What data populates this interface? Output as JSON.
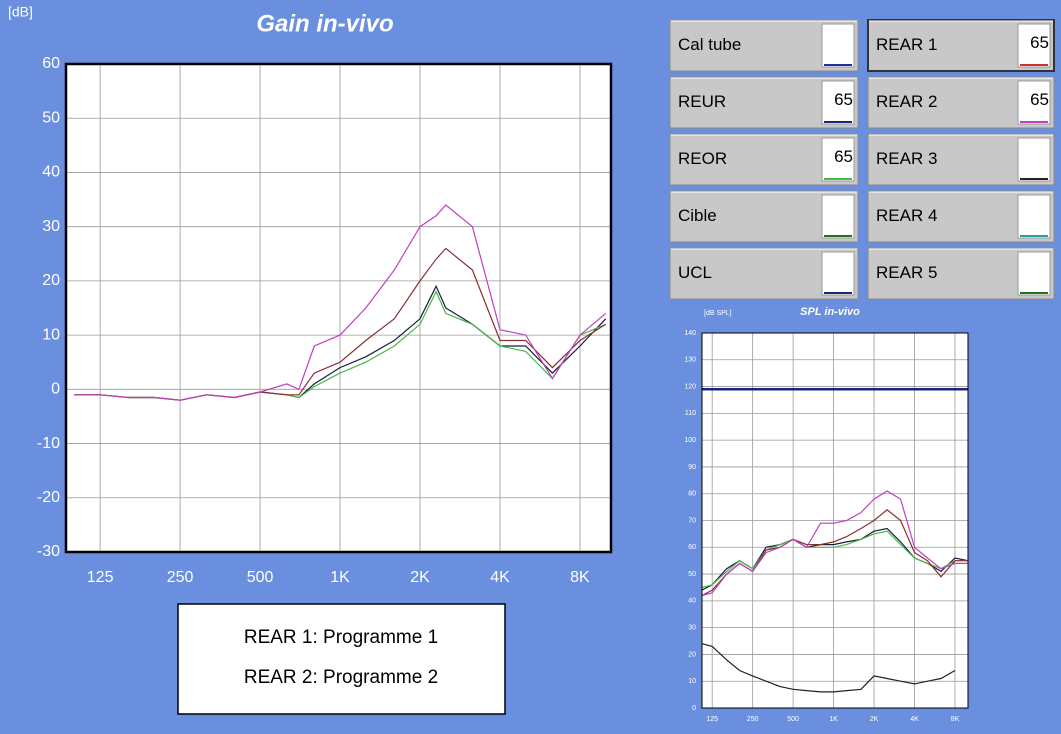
{
  "chart_data": [
    {
      "type": "line",
      "title": "Gain in-vivo",
      "y_label": "[dB]",
      "x": [
        100,
        125,
        160,
        200,
        250,
        315,
        400,
        500,
        630,
        700,
        800,
        1000,
        1250,
        1600,
        2000,
        2300,
        2500,
        3150,
        4000,
        5000,
        6300,
        8000,
        10000
      ],
      "xlim": [
        93,
        10470
      ],
      "log_x": true,
      "xticks": [
        125,
        250,
        500,
        {
          "value": 1000,
          "label": "1K"
        },
        {
          "value": 2000,
          "label": "2K"
        },
        {
          "value": 4000,
          "label": "4K"
        },
        {
          "value": 8000,
          "label": "8K"
        }
      ],
      "ylim": [
        -30,
        60
      ],
      "yticks": [
        -30,
        -20,
        -10,
        0,
        10,
        20,
        30,
        40,
        50,
        60
      ],
      "grid": true,
      "series": [
        {
          "color": "#1a1a40",
          "values": [
            -1,
            -1,
            -1.5,
            -1.5,
            -2,
            -1,
            -1.5,
            -0.5,
            -1,
            -1.5,
            1,
            4,
            6,
            9,
            13,
            19,
            15,
            12,
            8,
            8,
            3,
            8,
            13
          ]
        },
        {
          "color": "#44bb44",
          "values": [
            -1,
            -1,
            -1.5,
            -1.5,
            -2,
            -1,
            -1.5,
            -0.5,
            -1,
            -1.5,
            0.5,
            3,
            5,
            8,
            12,
            18,
            14,
            12,
            8,
            7,
            2,
            10,
            12
          ]
        },
        {
          "color": "#8b3030",
          "values": [
            -1,
            -1,
            -1.5,
            -1.5,
            -2,
            -1,
            -1.5,
            -0.5,
            -1,
            -1,
            3,
            5,
            9,
            13,
            20,
            24,
            26,
            22,
            9,
            9,
            4,
            9,
            12
          ]
        },
        {
          "color": "#c040c0",
          "values": [
            -1,
            -1,
            -1.5,
            -1.5,
            -2,
            -1,
            -1.5,
            -0.5,
            1,
            0,
            8,
            10,
            15,
            22,
            30,
            32,
            34,
            30,
            11,
            10,
            2,
            10,
            14
          ]
        }
      ]
    },
    {
      "type": "line",
      "title": "SPL in-vivo",
      "y_label": "[dB SPL]",
      "x": [
        105,
        125,
        160,
        200,
        250,
        315,
        400,
        500,
        630,
        800,
        1000,
        1250,
        1600,
        2000,
        2500,
        3150,
        4000,
        5000,
        6300,
        8000,
        10000
      ],
      "xlim": [
        105,
        10000
      ],
      "log_x": true,
      "xticks": [
        125,
        250,
        500,
        {
          "value": 1000,
          "label": "1K"
        },
        {
          "value": 2000,
          "label": "2K"
        },
        {
          "value": 4000,
          "label": "4K"
        },
        {
          "value": 8000,
          "label": "8K"
        }
      ],
      "ylim": [
        0,
        140
      ],
      "yticks": [
        0,
        10,
        20,
        30,
        40,
        50,
        60,
        70,
        80,
        90,
        100,
        110,
        120,
        130,
        140
      ],
      "grid": true,
      "series": [
        {
          "color": "#1a237e",
          "width": 2.5,
          "values": [
            119,
            119,
            119,
            119,
            119,
            119,
            119,
            119,
            119,
            119,
            119,
            119,
            119,
            119,
            119,
            119,
            119,
            119,
            119,
            119,
            119
          ]
        },
        {
          "color": "#222222",
          "values": [
            24,
            23,
            18,
            14,
            12,
            10,
            8,
            7,
            6.5,
            6,
            6,
            6.5,
            7,
            12,
            11,
            10,
            9,
            10,
            11,
            14,
            null
          ]
        },
        {
          "color": "#1a1a40",
          "values": [
            44,
            46,
            52,
            55,
            52,
            60,
            61,
            63,
            60,
            61,
            61,
            62,
            63,
            66,
            67,
            62,
            56,
            54,
            51,
            56,
            55
          ]
        },
        {
          "color": "#44bb44",
          "values": [
            45,
            46,
            51,
            55,
            52,
            59,
            61,
            63,
            60,
            60,
            60,
            61,
            63,
            65,
            66,
            61,
            56,
            54,
            52,
            55,
            55
          ]
        },
        {
          "color": "#8b3030",
          "values": [
            42,
            44,
            50,
            54,
            51,
            59,
            60,
            63,
            61,
            61,
            62,
            64,
            67,
            70,
            74,
            70,
            58,
            55,
            49,
            55,
            55
          ]
        },
        {
          "color": "#c040c0",
          "values": [
            42,
            43,
            50,
            54,
            51,
            58,
            60,
            63,
            60,
            69,
            69,
            70,
            73,
            78,
            81,
            78,
            60,
            56,
            52,
            54,
            54
          ]
        }
      ]
    }
  ],
  "buttons": [
    {
      "label": "Cal tube",
      "color": "#2030a0"
    },
    {
      "label": "REAR 1",
      "value": 65,
      "color": "#d03030"
    },
    {
      "label": "REUR",
      "value": 65,
      "color": "#1a237e"
    },
    {
      "label": "REAR 2",
      "value": 65,
      "color": "#c040c0"
    },
    {
      "label": "REOR",
      "value": 65,
      "color": "#44bb44"
    },
    {
      "label": "REAR 3",
      "color": "#222222"
    },
    {
      "label": "Cible",
      "color": "#207020"
    },
    {
      "label": "REAR 4",
      "color": "#20a0a0"
    },
    {
      "label": "UCL",
      "color": "#1a237e"
    },
    {
      "label": "REAR 5",
      "color": "#207020"
    }
  ],
  "note": {
    "lines": [
      "REAR 1: Programme 1",
      "REAR 2: Programme 2"
    ]
  }
}
